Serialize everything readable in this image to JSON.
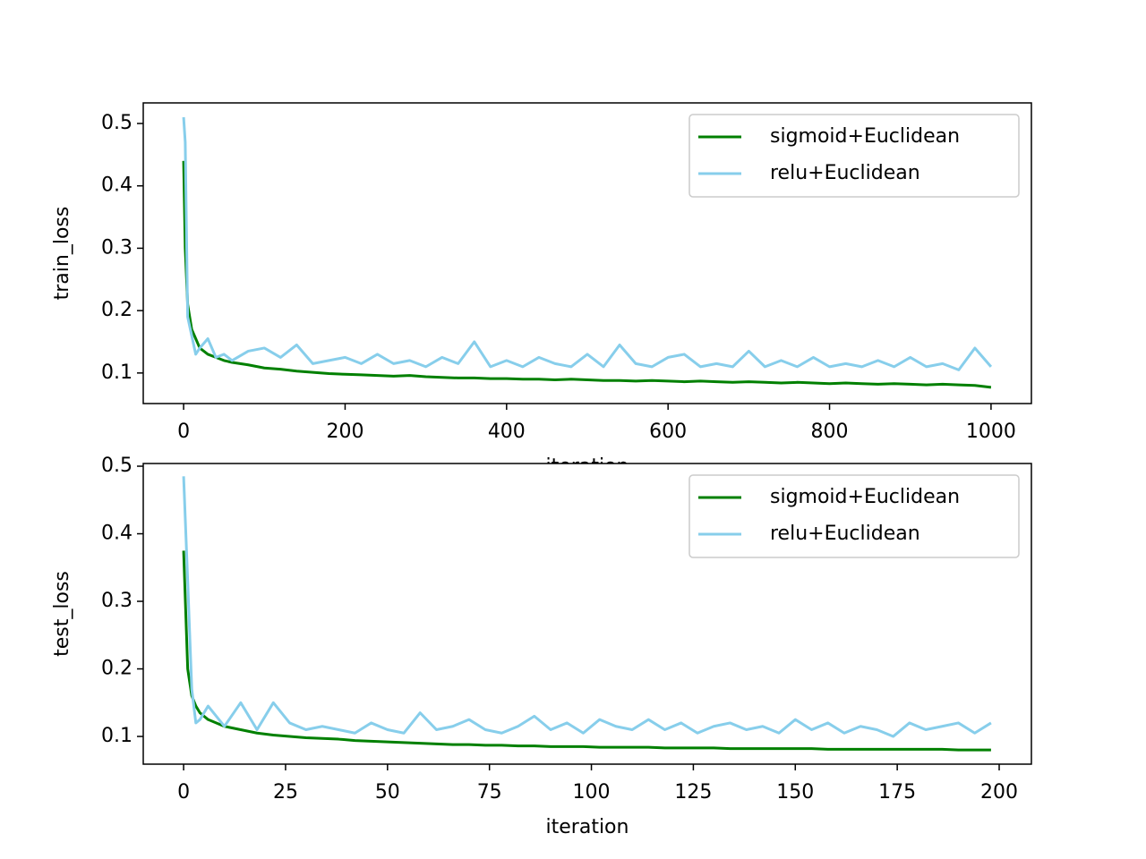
{
  "chart_data": [
    {
      "type": "line",
      "xlabel": "iteration",
      "ylabel": "train_loss",
      "legend": "upper right",
      "xlim": [
        -50,
        1050
      ],
      "ylim": [
        0.051,
        0.533
      ],
      "xticks": [
        0,
        200,
        400,
        600,
        800,
        1000
      ],
      "yticks": [
        0.1,
        0.2,
        0.3,
        0.4,
        0.5
      ],
      "x": [
        0,
        2,
        5,
        10,
        15,
        20,
        30,
        40,
        50,
        60,
        80,
        100,
        120,
        140,
        160,
        180,
        200,
        220,
        240,
        260,
        280,
        300,
        320,
        340,
        360,
        380,
        400,
        420,
        440,
        460,
        480,
        500,
        520,
        540,
        560,
        580,
        600,
        620,
        640,
        660,
        680,
        700,
        720,
        740,
        760,
        780,
        800,
        820,
        840,
        860,
        880,
        900,
        920,
        940,
        960,
        980,
        1000
      ],
      "series": [
        {
          "name": "sigmoid+Euclidean",
          "color": "#008000",
          "values": [
            0.44,
            0.3,
            0.21,
            0.17,
            0.155,
            0.14,
            0.13,
            0.125,
            0.12,
            0.117,
            0.113,
            0.108,
            0.106,
            0.103,
            0.101,
            0.099,
            0.098,
            0.097,
            0.096,
            0.095,
            0.096,
            0.094,
            0.093,
            0.092,
            0.092,
            0.091,
            0.091,
            0.09,
            0.09,
            0.089,
            0.09,
            0.089,
            0.088,
            0.088,
            0.087,
            0.088,
            0.087,
            0.086,
            0.087,
            0.086,
            0.085,
            0.086,
            0.085,
            0.084,
            0.085,
            0.084,
            0.083,
            0.084,
            0.083,
            0.082,
            0.083,
            0.082,
            0.081,
            0.082,
            0.081,
            0.08,
            0.077
          ]
        },
        {
          "name": "relu+Euclidean",
          "color": "#87ceeb",
          "values": [
            0.51,
            0.47,
            0.19,
            0.16,
            0.13,
            0.14,
            0.155,
            0.125,
            0.13,
            0.12,
            0.135,
            0.14,
            0.125,
            0.145,
            0.115,
            0.12,
            0.125,
            0.115,
            0.13,
            0.115,
            0.12,
            0.11,
            0.125,
            0.115,
            0.15,
            0.11,
            0.12,
            0.11,
            0.125,
            0.115,
            0.11,
            0.13,
            0.11,
            0.145,
            0.115,
            0.11,
            0.125,
            0.13,
            0.11,
            0.115,
            0.11,
            0.135,
            0.11,
            0.12,
            0.11,
            0.125,
            0.11,
            0.115,
            0.11,
            0.12,
            0.11,
            0.125,
            0.11,
            0.115,
            0.105,
            0.14,
            0.11
          ]
        }
      ]
    },
    {
      "type": "line",
      "xlabel": "iteration",
      "ylabel": "test_loss",
      "legend": "upper right",
      "xlim": [
        -9.9,
        207.9
      ],
      "ylim": [
        0.059,
        0.504
      ],
      "xticks": [
        0,
        25,
        50,
        75,
        100,
        125,
        150,
        175,
        200
      ],
      "yticks": [
        0.1,
        0.2,
        0.3,
        0.4,
        0.5
      ],
      "x": [
        0,
        1,
        2,
        3,
        4,
        6,
        10,
        14,
        18,
        22,
        26,
        30,
        34,
        38,
        42,
        46,
        50,
        54,
        58,
        62,
        66,
        70,
        74,
        78,
        82,
        86,
        90,
        94,
        98,
        102,
        106,
        110,
        114,
        118,
        122,
        126,
        130,
        134,
        138,
        142,
        146,
        150,
        154,
        158,
        162,
        166,
        170,
        174,
        178,
        182,
        186,
        190,
        194,
        198
      ],
      "series": [
        {
          "name": "sigmoid+Euclidean",
          "color": "#008000",
          "values": [
            0.375,
            0.2,
            0.16,
            0.145,
            0.135,
            0.125,
            0.115,
            0.11,
            0.105,
            0.102,
            0.1,
            0.098,
            0.097,
            0.096,
            0.094,
            0.093,
            0.092,
            0.091,
            0.09,
            0.089,
            0.088,
            0.088,
            0.087,
            0.087,
            0.086,
            0.086,
            0.085,
            0.085,
            0.085,
            0.084,
            0.084,
            0.084,
            0.084,
            0.083,
            0.083,
            0.083,
            0.083,
            0.082,
            0.082,
            0.082,
            0.082,
            0.082,
            0.082,
            0.081,
            0.081,
            0.081,
            0.081,
            0.081,
            0.081,
            0.081,
            0.081,
            0.08,
            0.08,
            0.08
          ]
        },
        {
          "name": "relu+Euclidean",
          "color": "#87ceeb",
          "values": [
            0.485,
            0.33,
            0.17,
            0.12,
            0.125,
            0.145,
            0.115,
            0.15,
            0.11,
            0.15,
            0.12,
            0.11,
            0.115,
            0.11,
            0.105,
            0.12,
            0.11,
            0.105,
            0.135,
            0.11,
            0.115,
            0.125,
            0.11,
            0.105,
            0.115,
            0.13,
            0.11,
            0.12,
            0.105,
            0.125,
            0.115,
            0.11,
            0.125,
            0.11,
            0.12,
            0.105,
            0.115,
            0.12,
            0.11,
            0.115,
            0.105,
            0.125,
            0.11,
            0.12,
            0.105,
            0.115,
            0.11,
            0.1,
            0.12,
            0.11,
            0.115,
            0.12,
            0.105,
            0.12
          ]
        }
      ]
    }
  ]
}
